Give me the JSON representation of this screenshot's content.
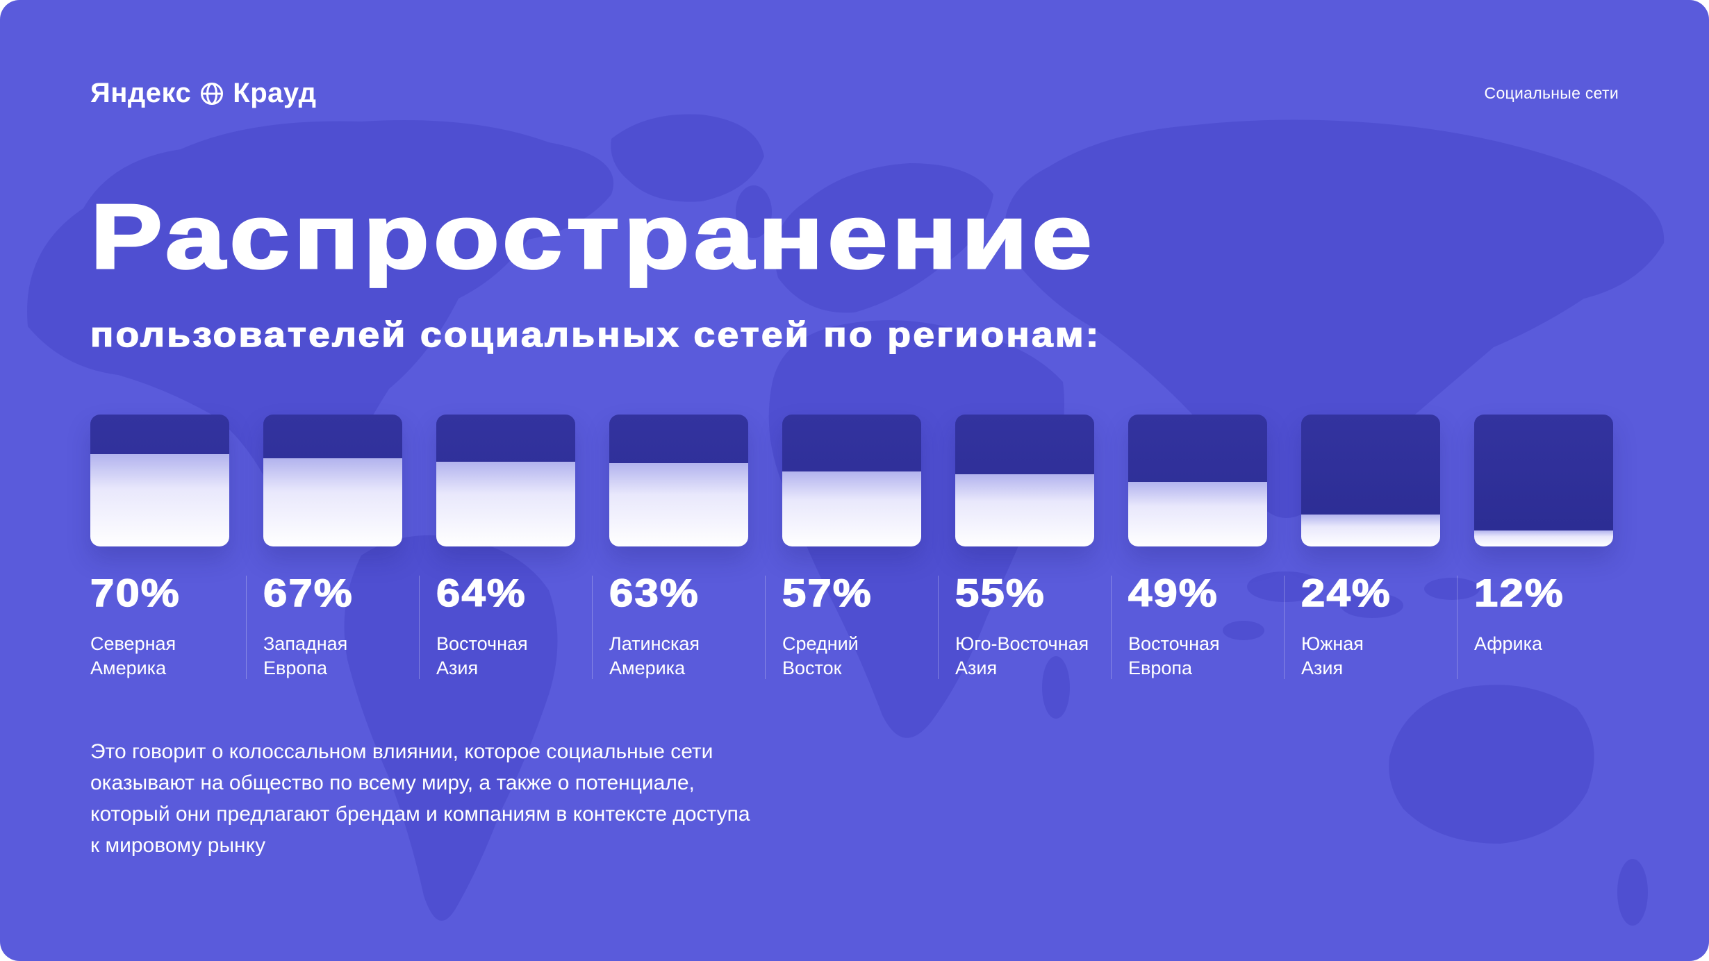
{
  "theme": {
    "background": "#5a5bdb",
    "map_silhouette": "#4948cb",
    "card_dark": "#2e3098",
    "card_fill_highlight": "#b2b3ee",
    "text": "#ffffff"
  },
  "header": {
    "logo_left": "Яндекс",
    "logo_right": "Крауд",
    "logo_icon": "globe-grid-icon",
    "topic_tag": "Социальные сети"
  },
  "title": "Распространение",
  "subtitle": "пользователей социальных сетей по регионам:",
  "chart_data": {
    "type": "bar",
    "title": "Распространение пользователей социальных сетей по регионам",
    "unit": "%",
    "ylim": [
      0,
      100
    ],
    "legend": "none",
    "categories": [
      "Северная Америка",
      "Западная Европа",
      "Восточная Азия",
      "Латинская Америка",
      "Средний Восток",
      "Юго-Восточная Азия",
      "Восточная Европа",
      "Южная Азия",
      "Африка"
    ],
    "values": [
      70,
      67,
      64,
      63,
      57,
      55,
      49,
      24,
      12
    ]
  },
  "stats": [
    {
      "value": "70%",
      "line1": "Северная",
      "line2": "Америка"
    },
    {
      "value": "67%",
      "line1": "Западная",
      "line2": "Европа"
    },
    {
      "value": "64%",
      "line1": "Восточная",
      "line2": "Азия"
    },
    {
      "value": "63%",
      "line1": "Латинская",
      "line2": "Америка"
    },
    {
      "value": "57%",
      "line1": "Средний",
      "line2": "Восток"
    },
    {
      "value": "55%",
      "line1": "Юго-Восточная",
      "line2": "Азия"
    },
    {
      "value": "49%",
      "line1": "Восточная",
      "line2": "Европа"
    },
    {
      "value": "24%",
      "line1": "Южная",
      "line2": "Азия"
    },
    {
      "value": "12%",
      "line1": "Африка",
      "line2": ""
    }
  ],
  "footer_text": "Это говорит о колоссальном влиянии, которое социальные сети оказывают на общество по всему миру, а также о потенциале, который они предлагают брендам и компаниям в контексте доступа к мировому рынку"
}
